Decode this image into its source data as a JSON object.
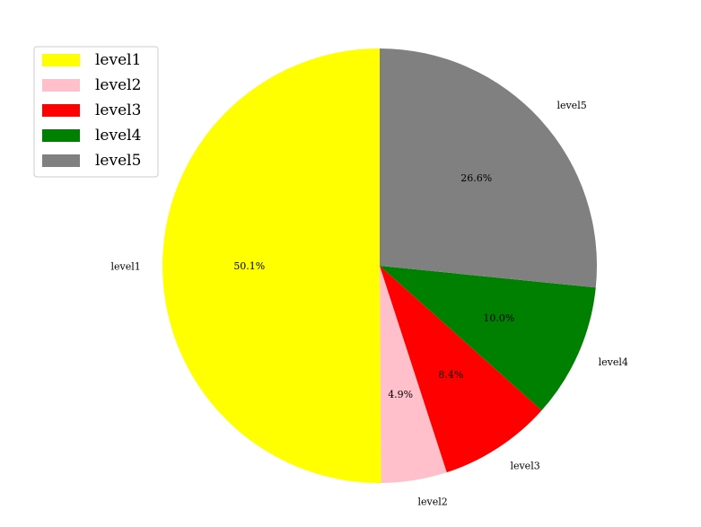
{
  "chart_data": {
    "type": "pie",
    "title": "",
    "legend_placement": "top-left",
    "slices": [
      {
        "label": "level1",
        "percent": 50.1,
        "pct_text": "50.1%",
        "color": "#ffff00"
      },
      {
        "label": "level2",
        "percent": 4.9,
        "pct_text": "4.9%",
        "color": "#ffc0cb"
      },
      {
        "label": "level3",
        "percent": 8.4,
        "pct_text": "8.4%",
        "color": "#ff0000"
      },
      {
        "label": "level4",
        "percent": 10.0,
        "pct_text": "10.0%",
        "color": "#008000"
      },
      {
        "label": "level5",
        "percent": 26.6,
        "pct_text": "26.6%",
        "color": "#808080"
      }
    ]
  }
}
